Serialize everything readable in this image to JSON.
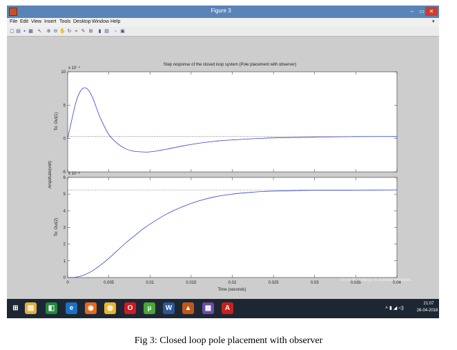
{
  "window": {
    "title": "Figure 3",
    "controls": {
      "minimize": "–",
      "maximize": "▭",
      "close": "✕"
    }
  },
  "menu": {
    "items": [
      "File",
      "Edit",
      "View",
      "Insert",
      "Tools",
      "Desktop",
      "Window",
      "Help"
    ],
    "overflow_arrow": "▾"
  },
  "toolbar": {
    "tools": [
      {
        "name": "new-figure-icon",
        "glyph": "▢"
      },
      {
        "name": "open-file-icon",
        "glyph": "▤"
      },
      {
        "name": "save-icon",
        "glyph": "▪"
      },
      {
        "name": "print-icon",
        "glyph": "▦"
      },
      {
        "name": "edit-plot-arrow-icon",
        "glyph": "↖"
      },
      {
        "name": "zoom-in-icon",
        "glyph": "⊕"
      },
      {
        "name": "zoom-out-icon",
        "glyph": "⊖"
      },
      {
        "name": "pan-hand-icon",
        "glyph": "✋"
      },
      {
        "name": "rotate-3d-icon",
        "glyph": "↻"
      },
      {
        "name": "data-cursor-icon",
        "glyph": "⌖"
      },
      {
        "name": "brush-icon",
        "glyph": "✎"
      },
      {
        "name": "link-plot-icon",
        "glyph": "⊞"
      },
      {
        "name": "insert-colorbar-icon",
        "glyph": "▮"
      },
      {
        "name": "insert-legend-icon",
        "glyph": "▤"
      },
      {
        "name": "hide-plot-tools-icon",
        "glyph": "▫"
      },
      {
        "name": "show-plot-tools-icon",
        "glyph": "▣"
      }
    ]
  },
  "chart_data": {
    "type": "line",
    "title": "Step response of the closed loop system (Pole placement with observer)",
    "xlabel": "Time (seconds)",
    "ylabel": "Amplitude(volt)",
    "xlim": [
      0,
      0.04
    ],
    "x_ticks": [
      "0",
      "0.005",
      "0.01",
      "0.015",
      "0.02",
      "0.025",
      "0.03",
      "0.035",
      "0.04"
    ],
    "grid": false,
    "subplots": [
      {
        "ylabel": "To: Out(1)",
        "exponent_label": "x 10⁻⁴",
        "ylim": [
          -5,
          10
        ],
        "y_ticks": [
          "-5",
          "0",
          "5",
          "10"
        ],
        "x": [
          0,
          0.0005,
          0.001,
          0.0015,
          0.002,
          0.0025,
          0.003,
          0.0035,
          0.004,
          0.005,
          0.006,
          0.007,
          0.008,
          0.009,
          0.01,
          0.012,
          0.014,
          0.016,
          0.018,
          0.02,
          0.025,
          0.03,
          0.035,
          0.04
        ],
        "y": [
          0,
          2.8,
          5.4,
          7.0,
          7.6,
          7.3,
          6.2,
          4.6,
          3.0,
          0.6,
          -0.7,
          -1.5,
          -1.9,
          -2.0,
          -2.0,
          -1.6,
          -1.1,
          -0.7,
          -0.4,
          -0.2,
          0.1,
          0.2,
          0.3,
          0.3
        ],
        "steady_state": 0.3
      },
      {
        "ylabel": "To: Out(2)",
        "exponent_label": "x 10⁻⁶",
        "ylim": [
          0,
          6
        ],
        "y_ticks": [
          "0",
          "1",
          "2",
          "3",
          "4",
          "5",
          "6"
        ],
        "x": [
          0,
          0.001,
          0.002,
          0.003,
          0.004,
          0.005,
          0.006,
          0.007,
          0.008,
          0.009,
          0.01,
          0.012,
          0.014,
          0.016,
          0.018,
          0.02,
          0.022,
          0.025,
          0.03,
          0.035,
          0.04
        ],
        "y": [
          0,
          0.02,
          0.15,
          0.4,
          0.75,
          1.15,
          1.6,
          2.05,
          2.45,
          2.85,
          3.2,
          3.8,
          4.25,
          4.6,
          4.85,
          5.0,
          5.1,
          5.18,
          5.23,
          5.24,
          5.25
        ],
        "steady_state": 5.25
      }
    ]
  },
  "watermark": {
    "line1": "Activate Windows",
    "line2": "Go to PC settings to activate Windows."
  },
  "taskbar": {
    "apps": [
      {
        "name": "windows-start-icon",
        "glyph": "⊞",
        "color": "#1d2733"
      },
      {
        "name": "file-explorer-icon",
        "glyph": "▤",
        "color": "#e0b040"
      },
      {
        "name": "store-icon",
        "glyph": "◧",
        "color": "#1f8a3e"
      },
      {
        "name": "internet-explorer-icon",
        "glyph": "e",
        "color": "#1e6fc4"
      },
      {
        "name": "firefox-icon",
        "glyph": "◉",
        "color": "#e46a1d"
      },
      {
        "name": "chrome-icon",
        "glyph": "◍",
        "color": "#e9b72d"
      },
      {
        "name": "opera-icon",
        "glyph": "O",
        "color": "#cc1b23"
      },
      {
        "name": "utorrent-icon",
        "glyph": "µ",
        "color": "#4aa537"
      },
      {
        "name": "word-icon",
        "glyph": "W",
        "color": "#2b5797"
      },
      {
        "name": "matlab-icon",
        "glyph": "▲",
        "color": "#c2571a"
      },
      {
        "name": "media-app-icon",
        "glyph": "▦",
        "color": "#6a4ea0"
      },
      {
        "name": "acrobat-icon",
        "glyph": "A",
        "color": "#c8201b"
      }
    ],
    "tray": "˄ ▮ ◢ ◁)",
    "clock_time": "21:07",
    "clock_date": "26-04-2018"
  },
  "caption": "Fig 3: Closed loop pole placement with observer"
}
